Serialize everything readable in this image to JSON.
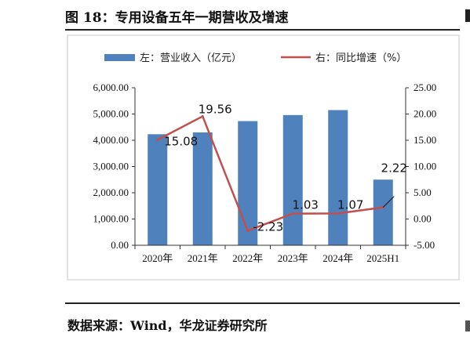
{
  "page": {
    "title": "图 18：专用设备五年一期营收及增速",
    "source": "数据来源：Wind，华龙证券研究所"
  },
  "chart_data": {
    "type": "bar",
    "categories": [
      "2020年",
      "2021年",
      "2022年",
      "2023年",
      "2024年",
      "2025H1"
    ],
    "series": [
      {
        "name": "左：营业收入（亿元）",
        "type": "bar",
        "axis": "left",
        "values": [
          4230,
          4300,
          4730,
          4960,
          5150,
          2500
        ],
        "color": "#4F81BD"
      },
      {
        "name": "右：同比增速（%）",
        "type": "line",
        "axis": "right",
        "values": [
          15.08,
          19.56,
          -2.23,
          1.03,
          1.07,
          2.22
        ],
        "color": "#C0504D"
      }
    ],
    "left_axis": {
      "ylim": [
        0,
        6000
      ],
      "ticks": [
        "0.00",
        "1,000.00",
        "2,000.00",
        "3,000.00",
        "4,000.00",
        "5,000.00",
        "6,000.00"
      ]
    },
    "right_axis": {
      "ylim": [
        -5,
        25
      ],
      "ticks": [
        "-5.00",
        "0.00",
        "5.00",
        "10.00",
        "15.00",
        "20.00",
        "25.00"
      ]
    },
    "data_labels": [
      "15.08",
      "19.56",
      "-2.23",
      "1.03",
      "1.07",
      "2.22"
    ],
    "legend_position": "top",
    "grid": false
  }
}
